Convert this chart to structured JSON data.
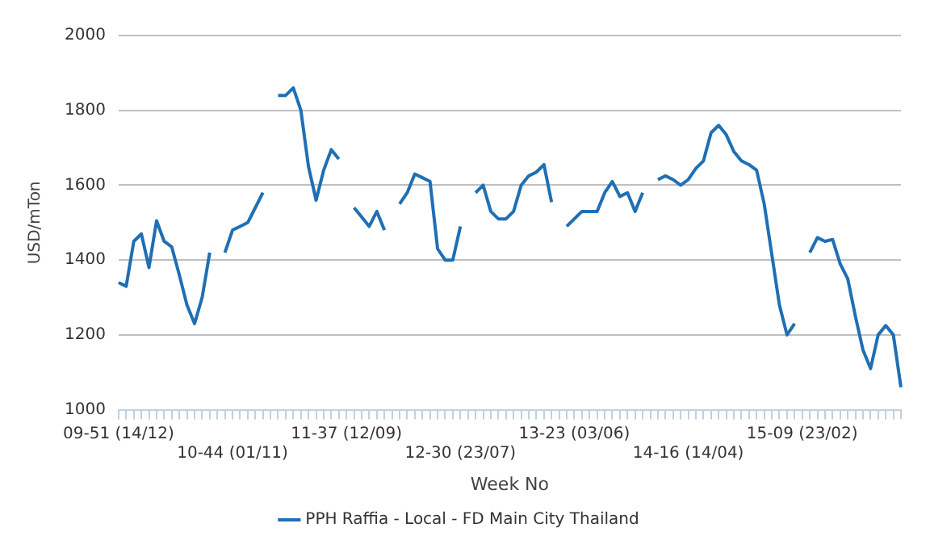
{
  "chart_data": {
    "type": "line",
    "xlabel": "Week No",
    "ylabel": "USD/mTon",
    "categories": [
      "09-51 (14/12)",
      null,
      null,
      null,
      null,
      null,
      null,
      null,
      null,
      null,
      null,
      null,
      null,
      null,
      null,
      "10-44 (01/11)",
      null,
      null,
      null,
      null,
      null,
      null,
      null,
      null,
      null,
      null,
      null,
      null,
      null,
      null,
      "11-37 (12/09)",
      null,
      null,
      null,
      null,
      null,
      null,
      null,
      null,
      null,
      null,
      null,
      null,
      null,
      null,
      "12-30 (23/07)",
      null,
      null,
      null,
      null,
      null,
      null,
      null,
      null,
      null,
      null,
      null,
      null,
      null,
      null,
      "13-23 (03/06)",
      null,
      null,
      null,
      null,
      null,
      null,
      null,
      null,
      null,
      null,
      null,
      null,
      null,
      null,
      "14-16 (14/04)",
      null,
      null,
      null,
      null,
      null,
      null,
      null,
      null,
      null,
      null,
      null,
      null,
      null,
      null,
      "15-09 (23/02)",
      null,
      null,
      null,
      null,
      null,
      null,
      null,
      null,
      null,
      null,
      null,
      null,
      null
    ],
    "series": [
      {
        "name": "PPH Raffia - Local - FD Main City Thailand",
        "color": "#1f6fb4",
        "values": [
          1340,
          1330,
          1450,
          1470,
          1380,
          1505,
          1450,
          1435,
          1360,
          1280,
          1230,
          1300,
          1420,
          null,
          1420,
          1480,
          1490,
          1500,
          1540,
          1580,
          null,
          1840,
          1840,
          1860,
          1800,
          1650,
          1560,
          1640,
          1695,
          1670,
          null,
          1540,
          1515,
          1490,
          1530,
          1480,
          null,
          1550,
          1580,
          1630,
          1620,
          1610,
          1430,
          1400,
          1400,
          1490,
          null,
          1580,
          1600,
          1530,
          1510,
          1510,
          1530,
          1600,
          1625,
          1635,
          1655,
          1555,
          null,
          1490,
          1510,
          1530,
          1530,
          1530,
          1580,
          1610,
          1570,
          1580,
          1530,
          1580,
          null,
          1615,
          1625,
          1615,
          1600,
          1615,
          1645,
          1665,
          1740,
          1760,
          1735,
          1690,
          1665,
          1655,
          1640,
          1550,
          1415,
          1280,
          1200,
          1230,
          null,
          1420,
          1460,
          1450,
          1455,
          1390,
          1350,
          1250,
          1160,
          1110,
          1200,
          1225,
          1200,
          1060
        ]
      }
    ],
    "ylim": [
      1000,
      2000
    ],
    "yticks": [
      1000,
      1200,
      1400,
      1600,
      1800,
      2000
    ],
    "grid": "y",
    "legend": "bottom",
    "marker": "none",
    "line_style": "solid"
  }
}
